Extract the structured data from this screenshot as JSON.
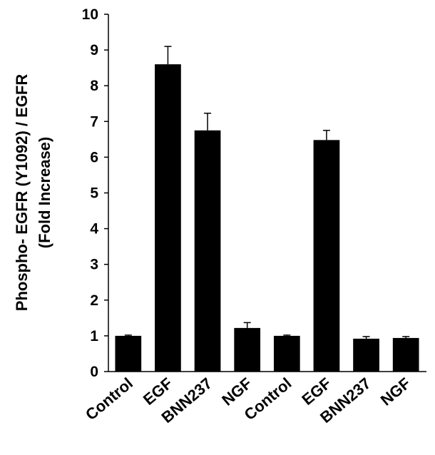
{
  "chart_data": {
    "type": "bar",
    "y_label": [
      "Phospho- EGFR (Y1092) / EGFR",
      "(Fold Increase)"
    ],
    "categories": [
      "Control",
      "EGF",
      "BNN237",
      "NGF",
      "Control",
      "EGF",
      "BNN237",
      "NGF"
    ],
    "values": [
      1.0,
      8.6,
      6.75,
      1.22,
      1.0,
      6.48,
      0.92,
      0.94
    ],
    "errors": [
      0.02,
      0.5,
      0.48,
      0.15,
      0.02,
      0.27,
      0.06,
      0.04
    ],
    "color": "#000000",
    "ylim": [
      0,
      10
    ],
    "yticks": [
      0,
      1,
      2,
      3,
      4,
      5,
      6,
      7,
      8,
      9,
      10
    ],
    "grid": false
  }
}
